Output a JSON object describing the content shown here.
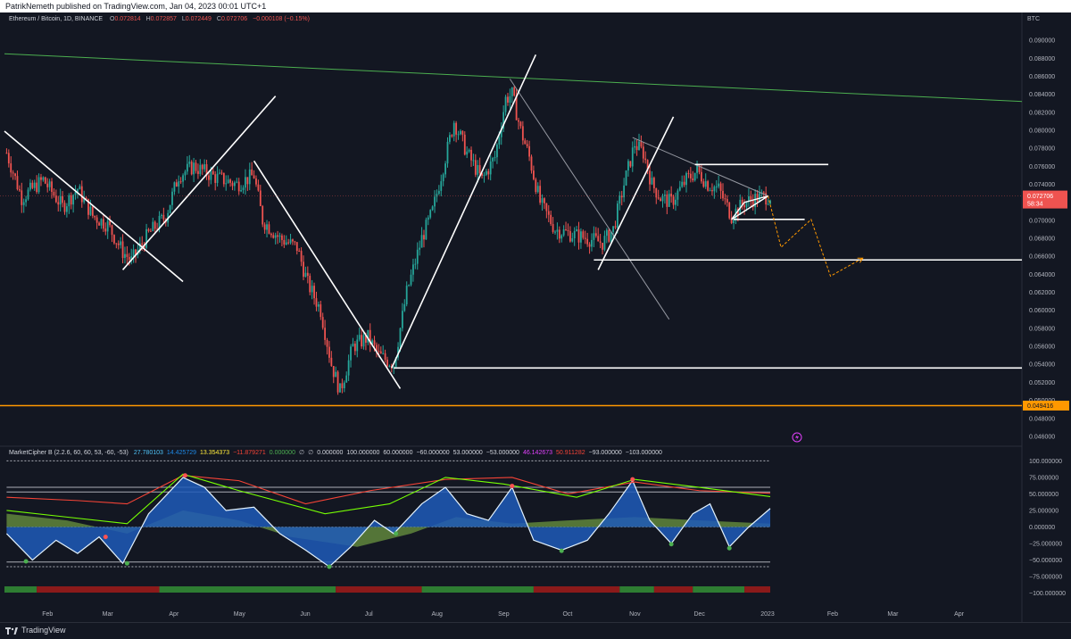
{
  "header": {
    "publisher": "PatrikNemeth published on TradingView.com, Jan 04, 2023 00:01 UTC+1"
  },
  "legend": {
    "symbol": "Ethereum / Bitcoin, 1D, BINANCE",
    "open_label": "O",
    "open": "0.072814",
    "high_label": "H",
    "high": "0.072857",
    "low_label": "L",
    "low": "0.072449",
    "close_label": "C",
    "close": "0.072706",
    "change": "−0.000108 (−0.15%)"
  },
  "indicator": {
    "name": "MarketCipher B (2.2.6, 60, 60, 53, -60, -53)",
    "values": [
      "27.780103",
      "14.425729",
      "13.354373",
      "−11.879271",
      "0.000000",
      "∅",
      "∅",
      "0.000000",
      "100.000000",
      "60.000000",
      "−60.000000",
      "53.000000",
      "−53.000000",
      "46.142673",
      "50.911282",
      "−93.000000",
      "−103.000000"
    ],
    "value_colors": [
      "#4fc3f7",
      "#1e88e5",
      "#ffeb3b",
      "#f44336",
      "#4caf50",
      "#b2b5be",
      "#b2b5be",
      "#d1d4dc",
      "#d1d4dc",
      "#d1d4dc",
      "#d1d4dc",
      "#d1d4dc",
      "#d1d4dc",
      "#e040fb",
      "#f44336",
      "#d1d4dc",
      "#d1d4dc"
    ]
  },
  "colors": {
    "background": "#131722",
    "up": "#26a69a",
    "down": "#ef5350",
    "support": "#ff9800",
    "trend_green": "#4caf50",
    "price_tag": "#ef5350"
  },
  "price_axis": {
    "currency": "BTC",
    "current_price": "0.072706",
    "countdown": "58:34",
    "support_price": "0.049416"
  },
  "osc_axis": {
    "ticks": [
      "100.000000",
      "75.000000",
      "50.000000",
      "25.000000",
      "0.000000",
      "−25.000000",
      "−50.000000",
      "−75.000000",
      "−100.000000"
    ]
  },
  "footer": {
    "brand": "TradingView"
  },
  "chart_data": {
    "type": "candlestick",
    "symbol": "Ethereum / Bitcoin",
    "timeframe": "1D",
    "exchange": "BINANCE",
    "x_axis_labels": [
      "Feb",
      "Mar",
      "Apr",
      "May",
      "Jun",
      "Jul",
      "Aug",
      "Sep",
      "Oct",
      "Nov",
      "Dec",
      "2023",
      "Feb",
      "Mar",
      "Apr"
    ],
    "y_axis_ticks": [
      "0.090000",
      "0.088000",
      "0.086000",
      "0.084000",
      "0.082000",
      "0.080000",
      "0.078000",
      "0.076000",
      "0.074000",
      "0.072000",
      "0.070000",
      "0.068000",
      "0.066000",
      "0.064000",
      "0.062000",
      "0.060000",
      "0.058000",
      "0.056000",
      "0.054000",
      "0.052000",
      "0.050000",
      "0.048000",
      "0.046000"
    ],
    "ylim": [
      0.0452,
      0.0917
    ],
    "x_start": "2022-01-12",
    "x_end": "2023-04-30",
    "price_path": [
      [
        "2022-01-13",
        0.0775
      ],
      [
        "2022-01-20",
        0.0725
      ],
      [
        "2022-01-30",
        0.0745
      ],
      [
        "2022-02-08",
        0.0715
      ],
      [
        "2022-02-15",
        0.0735
      ],
      [
        "2022-02-22",
        0.0705
      ],
      [
        "2022-03-01",
        0.0695
      ],
      [
        "2022-03-08",
        0.0665
      ],
      [
        "2022-03-12",
        0.0655
      ],
      [
        "2022-03-20",
        0.0685
      ],
      [
        "2022-03-28",
        0.0705
      ],
      [
        "2022-04-03",
        0.075
      ],
      [
        "2022-04-10",
        0.076
      ],
      [
        "2022-04-20",
        0.0748
      ],
      [
        "2022-04-30",
        0.074
      ],
      [
        "2022-05-08",
        0.075
      ],
      [
        "2022-05-12",
        0.07
      ],
      [
        "2022-05-20",
        0.068
      ],
      [
        "2022-05-28",
        0.067
      ],
      [
        "2022-06-02",
        0.063
      ],
      [
        "2022-06-08",
        0.06
      ],
      [
        "2022-06-13",
        0.054
      ],
      [
        "2022-06-17",
        0.051
      ],
      [
        "2022-06-23",
        0.056
      ],
      [
        "2022-06-30",
        0.057
      ],
      [
        "2022-07-05",
        0.055
      ],
      [
        "2022-07-12",
        0.054
      ],
      [
        "2022-07-18",
        0.062
      ],
      [
        "2022-07-25",
        0.068
      ],
      [
        "2022-07-30",
        0.071
      ],
      [
        "2022-08-04",
        0.076
      ],
      [
        "2022-08-09",
        0.081
      ],
      [
        "2022-08-15",
        0.0775
      ],
      [
        "2022-08-22",
        0.0745
      ],
      [
        "2022-08-28",
        0.077
      ],
      [
        "2022-09-02",
        0.0835
      ],
      [
        "2022-09-05",
        0.084
      ],
      [
        "2022-09-09",
        0.08
      ],
      [
        "2022-09-13",
        0.077
      ],
      [
        "2022-09-18",
        0.072
      ],
      [
        "2022-09-25",
        0.069
      ],
      [
        "2022-10-02",
        0.0685
      ],
      [
        "2022-10-10",
        0.068
      ],
      [
        "2022-10-17",
        0.0675
      ],
      [
        "2022-10-22",
        0.069
      ],
      [
        "2022-10-27",
        0.074
      ],
      [
        "2022-11-01",
        0.0785
      ],
      [
        "2022-11-05",
        0.0775
      ],
      [
        "2022-11-09",
        0.074
      ],
      [
        "2022-11-13",
        0.0725
      ],
      [
        "2022-11-18",
        0.072
      ],
      [
        "2022-11-25",
        0.0745
      ],
      [
        "2022-11-30",
        0.0755
      ],
      [
        "2022-12-05",
        0.074
      ],
      [
        "2022-12-10",
        0.0735
      ],
      [
        "2022-12-16",
        0.0705
      ],
      [
        "2022-12-22",
        0.072
      ],
      [
        "2022-12-28",
        0.0725
      ],
      [
        "2023-01-03",
        0.0727
      ]
    ],
    "drawings": {
      "support_line": {
        "price": 0.049416,
        "color": "#ff9800"
      },
      "horizontal_levels": [
        {
          "from": "2022-07-12",
          "to": "2023-04-30",
          "price": 0.0536
        },
        {
          "from": "2022-10-13",
          "to": "2023-04-30",
          "price": 0.0656
        },
        {
          "from": "2022-11-29",
          "to": "2023-01-30",
          "price": 0.0762
        },
        {
          "from": "2022-12-17",
          "to": "2023-01-19",
          "price": 0.0701
        }
      ],
      "trend_lines": [
        {
          "x1": "2022-01-12",
          "y1": 0.0799,
          "x2": "2022-04-05",
          "y2": 0.0632
        },
        {
          "x1": "2022-03-08",
          "y1": 0.0645,
          "x2": "2022-05-18",
          "y2": 0.0838
        },
        {
          "x1": "2022-05-08",
          "y1": 0.0766,
          "x2": "2022-07-15",
          "y2": 0.0513
        },
        {
          "x1": "2022-07-11",
          "y1": 0.0536,
          "x2": "2022-09-16",
          "y2": 0.0884
        },
        {
          "x1": "2022-10-15",
          "y1": 0.0645,
          "x2": "2022-11-19",
          "y2": 0.0815
        }
      ],
      "thin_lines": [
        {
          "x1": "2022-09-04",
          "y1": 0.0857,
          "x2": "2022-11-17",
          "y2": 0.059,
          "color": "#9598a1"
        },
        {
          "x1": "2022-10-31",
          "y1": 0.0792,
          "x2": "2023-01-02",
          "y2": 0.0727,
          "color": "#9598a1"
        },
        {
          "x1": "2022-01-12",
          "y1": 0.0885,
          "x2": "2023-04-30",
          "y2": 0.0832,
          "color": "#4caf50"
        }
      ],
      "triangle": [
        {
          "x": "2022-12-16",
          "y": 0.0701
        },
        {
          "x": "2023-01-02",
          "y": 0.0727
        },
        {
          "x": "2022-12-22",
          "y": 0.072
        },
        {
          "x": "2022-12-16",
          "y": 0.0701
        }
      ],
      "projection": [
        {
          "x": "2023-01-02",
          "y": 0.0727
        },
        {
          "x": "2023-01-08",
          "y": 0.067
        },
        {
          "x": "2023-01-22",
          "y": 0.0701
        },
        {
          "x": "2023-01-31",
          "y": 0.0638
        },
        {
          "x": "2023-02-15",
          "y": 0.0658
        }
      ]
    },
    "oscillator": {
      "name": "MarketCipher B",
      "ylim": [
        -110,
        110
      ],
      "levels": [
        100,
        60,
        53,
        0,
        -53,
        -60
      ],
      "wave_path": [
        [
          "2022-01-13",
          -10
        ],
        [
          "2022-01-25",
          -50
        ],
        [
          "2022-02-05",
          -20
        ],
        [
          "2022-02-15",
          -40
        ],
        [
          "2022-02-25",
          -15
        ],
        [
          "2022-03-08",
          -55
        ],
        [
          "2022-03-20",
          20
        ],
        [
          "2022-04-05",
          75
        ],
        [
          "2022-04-15",
          60
        ],
        [
          "2022-04-25",
          25
        ],
        [
          "2022-05-08",
          30
        ],
        [
          "2022-05-20",
          -10
        ],
        [
          "2022-06-01",
          -35
        ],
        [
          "2022-06-12",
          -60
        ],
        [
          "2022-06-22",
          -30
        ],
        [
          "2022-07-03",
          10
        ],
        [
          "2022-07-12",
          -10
        ],
        [
          "2022-07-25",
          35
        ],
        [
          "2022-08-05",
          60
        ],
        [
          "2022-08-15",
          20
        ],
        [
          "2022-08-25",
          10
        ],
        [
          "2022-09-05",
          60
        ],
        [
          "2022-09-15",
          -20
        ],
        [
          "2022-09-28",
          -35
        ],
        [
          "2022-10-10",
          -20
        ],
        [
          "2022-10-20",
          20
        ],
        [
          "2022-10-31",
          70
        ],
        [
          "2022-11-08",
          10
        ],
        [
          "2022-11-18",
          -25
        ],
        [
          "2022-11-28",
          20
        ],
        [
          "2022-12-06",
          35
        ],
        [
          "2022-12-15",
          -30
        ],
        [
          "2022-12-24",
          0
        ],
        [
          "2023-01-03",
          28
        ]
      ],
      "money_flow_path": [
        [
          "2022-01-13",
          20
        ],
        [
          "2022-02-10",
          10
        ],
        [
          "2022-03-10",
          -10
        ],
        [
          "2022-04-05",
          25
        ],
        [
          "2022-05-01",
          10
        ],
        [
          "2022-05-25",
          -15
        ],
        [
          "2022-06-25",
          -30
        ],
        [
          "2022-07-20",
          -10
        ],
        [
          "2022-08-10",
          15
        ],
        [
          "2022-09-05",
          5
        ],
        [
          "2022-10-01",
          10
        ],
        [
          "2022-11-01",
          15
        ],
        [
          "2022-12-01",
          10
        ],
        [
          "2023-01-03",
          5
        ]
      ],
      "rsi_path": [
        [
          "2022-01-13",
          45
        ],
        [
          "2022-02-15",
          40
        ],
        [
          "2022-03-10",
          35
        ],
        [
          "2022-04-05",
          78
        ],
        [
          "2022-05-01",
          70
        ],
        [
          "2022-06-01",
          35
        ],
        [
          "2022-07-01",
          55
        ],
        [
          "2022-08-05",
          72
        ],
        [
          "2022-09-05",
          75
        ],
        [
          "2022-10-01",
          50
        ],
        [
          "2022-11-01",
          68
        ],
        [
          "2022-12-01",
          55
        ],
        [
          "2023-01-03",
          51
        ]
      ],
      "stoch_path": [
        [
          "2022-01-13",
          25
        ],
        [
          "2022-02-10",
          15
        ],
        [
          "2022-03-10",
          5
        ],
        [
          "2022-04-05",
          80
        ],
        [
          "2022-05-01",
          55
        ],
        [
          "2022-06-10",
          20
        ],
        [
          "2022-07-10",
          35
        ],
        [
          "2022-08-05",
          75
        ],
        [
          "2022-09-01",
          65
        ],
        [
          "2022-10-05",
          45
        ],
        [
          "2022-11-01",
          72
        ],
        [
          "2022-12-01",
          60
        ],
        [
          "2023-01-03",
          46
        ]
      ],
      "signal_dots": [
        {
          "date": "2022-01-22",
          "value": -52,
          "color": "#4caf50"
        },
        {
          "date": "2022-02-28",
          "value": -15,
          "color": "#ff5252"
        },
        {
          "date": "2022-03-10",
          "value": -55,
          "color": "#4caf50"
        },
        {
          "date": "2022-04-06",
          "value": 78,
          "color": "#ff5252"
        },
        {
          "date": "2022-06-12",
          "value": -60,
          "color": "#4caf50"
        },
        {
          "date": "2022-07-13",
          "value": -10,
          "color": "#4caf50"
        },
        {
          "date": "2022-09-05",
          "value": 62,
          "color": "#ff5252"
        },
        {
          "date": "2022-09-28",
          "value": -36,
          "color": "#4caf50"
        },
        {
          "date": "2022-10-31",
          "value": 72,
          "color": "#ff5252"
        },
        {
          "date": "2022-11-18",
          "value": -26,
          "color": "#4caf50"
        },
        {
          "date": "2022-12-15",
          "value": -32,
          "color": "#4caf50"
        }
      ],
      "trend_bar": [
        {
          "from": "2022-01-12",
          "to": "2022-01-27",
          "color": "#2e7d32"
        },
        {
          "from": "2022-01-27",
          "to": "2022-03-25",
          "color": "#8b1a1a"
        },
        {
          "from": "2022-03-25",
          "to": "2022-06-15",
          "color": "#2e7d32"
        },
        {
          "from": "2022-06-15",
          "to": "2022-07-25",
          "color": "#8b1a1a"
        },
        {
          "from": "2022-07-25",
          "to": "2022-09-15",
          "color": "#2e7d32"
        },
        {
          "from": "2022-09-15",
          "to": "2022-10-25",
          "color": "#8b1a1a"
        },
        {
          "from": "2022-10-25",
          "to": "2022-11-10",
          "color": "#2e7d32"
        },
        {
          "from": "2022-11-10",
          "to": "2022-11-28",
          "color": "#8b1a1a"
        },
        {
          "from": "2022-11-28",
          "to": "2022-12-22",
          "color": "#2e7d32"
        },
        {
          "from": "2022-12-22",
          "to": "2023-01-03",
          "color": "#8b1a1a"
        }
      ]
    }
  }
}
